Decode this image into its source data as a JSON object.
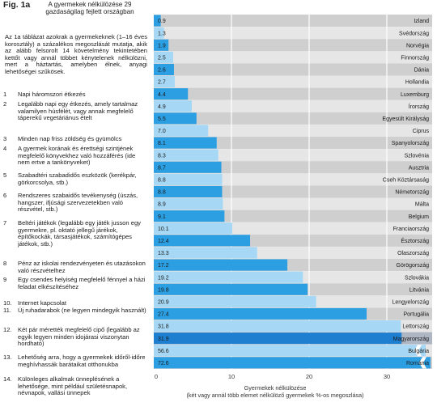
{
  "figure": {
    "label": "Fig. 1a",
    "title": "A gyermekek nélkülözése 29 gazdaságilag fejlett országban",
    "intro": "Az 1a táblázat azokrak a gyermekeknek (1–16 éves korosztály) a százalékos megoszlását mutatja, akik az alább felsorolt 14 követelmény tekintetében kettőt vagy annál többet kénytelenek nélkülözni, mert a háztartás, amelyben élnek, anyagi lehetőségei szűkösek."
  },
  "items": [
    {
      "num": "1",
      "text": "Napi háromszori étkezés"
    },
    {
      "num": "2",
      "text": "Legalább napi egy étkezés, amely tartalmaz valamilyen húsfélét, vagy annak megfelelő táperekű vegetáriánus ételt"
    },
    {
      "num": "3",
      "text": "Minden nap friss zöldség és gyümölcs"
    },
    {
      "num": "4",
      "text": "A gyermek korának és érettségi szintjének megfelelő könyvekhez való hozzáférés (ide nem ertve a tankönyveket)"
    },
    {
      "num": "5",
      "text": "Szabadtéri szabadidős eszközök (kerékpár, görkorcsolya, stb.)"
    },
    {
      "num": "6",
      "text": "Rendszeres szabaidős tevékenység (úszás, hangszer, ifjúsági szervezetekben való részvétel, stb.)"
    },
    {
      "num": "7",
      "text": "Beltéri játékok (legalább egy játék jusson egy gyermekre, pl. oktató jellegű járékok, építőkockák, társasjátékok, számítógépes játékok, stb.)"
    },
    {
      "num": "8",
      "text": "Pénz az iskolai rendezvényeten és utazásokon való részvételhez"
    },
    {
      "num": "9",
      "text": "Egy csendes helyiség megfelelő fénnyel a házi feladat elkészítéséhez"
    },
    {
      "num": "10.",
      "text": "Internet kapcsolat"
    },
    {
      "num": "11.",
      "text": "Új ruhadarabok (ne legyen mindegyik használt)"
    },
    {
      "num": "12.",
      "text": "Két pár mérették megfelelő cipő (legalább az egyik legyen minden idojárasi viszonytan hordható)"
    },
    {
      "num": "13.",
      "text": "Lehetőség arra, hogy a gyermekek időről-időre meghívhassák barátaikat otthonukba"
    },
    {
      "num": "14.",
      "text": "Különleges alkalmak ünneplésének a lehetősége, mint például születésnapok, névnapok, vallási ünnepek"
    }
  ],
  "chart_data": {
    "type": "bar",
    "orientation": "horizontal",
    "categories": [
      "Izland",
      "Svédország",
      "Norvégia",
      "Finnország",
      "Dánia",
      "Hollandia",
      "Luxemburg",
      "Írország",
      "Egyesült Királyság",
      "Ciprus",
      "Spanyolország",
      "Szlovénia",
      "Ausztria",
      "Cseh Köztársaság",
      "Németország",
      "Málta",
      "Belgium",
      "Franciaország",
      "Észtország",
      "Olaszország",
      "Görögország",
      "Szlovákia",
      "Litvánia",
      "Lengyelország",
      "Portugália",
      "Lettország",
      "Magyarország",
      "Bulgária",
      "Románia"
    ],
    "values": [
      0.9,
      1.3,
      1.9,
      2.5,
      2.6,
      2.7,
      4.4,
      4.9,
      5.5,
      7.0,
      8.1,
      8.3,
      8.7,
      8.8,
      8.8,
      8.9,
      9.1,
      10.1,
      12.4,
      13.3,
      17.2,
      19.2,
      19.8,
      20.9,
      27.4,
      31.8,
      31.9,
      56.6,
      72.6
    ],
    "value_labels": [
      "0.9",
      "1.3",
      "1.9",
      "2.5",
      "2.6",
      "2.7",
      "4.4",
      "4.9",
      "5.5",
      "7.0",
      "8.1",
      "8.3",
      "8.7",
      "8.8",
      "8.8",
      "8.9",
      "9.1",
      "10.1",
      "12.4",
      "13.3",
      "17.2",
      "19.2",
      "19.8",
      "20.9",
      "27.4",
      "31.8",
      "31.9",
      "56.6",
      "72.6"
    ],
    "xlim": [
      0,
      35
    ],
    "xticks": [
      "0",
      "10",
      "20",
      "30"
    ],
    "xlabel": "Gyermekek nélkülözése",
    "xlabel_sub": "(két vagy annál több elemet nélkülöző gyermekek %-os megoszlása)",
    "axis_break": true,
    "grid": true,
    "colors": {
      "bar_dark": "#2c9fe3",
      "bar_light": "#a6d8f5",
      "row_dark": "#cfcfcf",
      "row_light": "#e6e6e6",
      "highlight_bar": "#1e7fd0",
      "highlight_row": "#aeb6c4"
    },
    "highlight": "Magyarország"
  }
}
